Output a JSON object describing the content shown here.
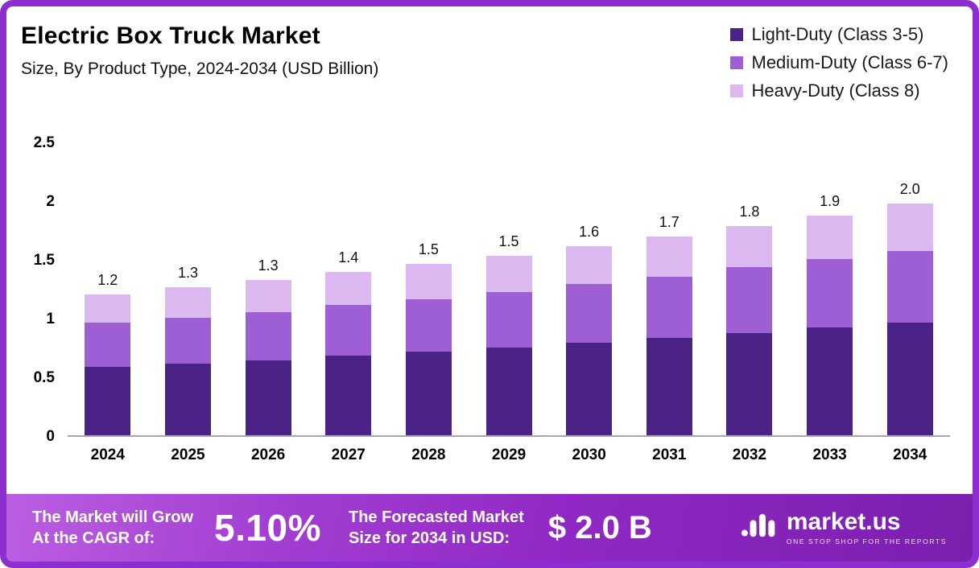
{
  "header": {
    "title": "Electric Box Truck Market",
    "subtitle": "Size, By Product Type, 2024-2034 (USD Billion)"
  },
  "legend": [
    {
      "label": "Light-Duty (Class 3-5)",
      "color": "#4B2387"
    },
    {
      "label": "Medium-Duty (Class 6-7)",
      "color": "#9D5FD3"
    },
    {
      "label": "Heavy-Duty (Class 8)",
      "color": "#DBB8F0"
    }
  ],
  "chart_data": {
    "type": "bar",
    "stacked": true,
    "title": "Electric Box Truck Market Size, By Product Type, 2024-2034 (USD Billion)",
    "categories": [
      "2024",
      "2025",
      "2026",
      "2027",
      "2028",
      "2029",
      "2030",
      "2031",
      "2032",
      "2033",
      "2034"
    ],
    "series": [
      {
        "name": "Light-Duty (Class 3-5)",
        "color": "#4B2387",
        "values": [
          0.58,
          0.61,
          0.64,
          0.68,
          0.71,
          0.75,
          0.79,
          0.83,
          0.87,
          0.92,
          0.96
        ]
      },
      {
        "name": "Medium-Duty (Class 6-7)",
        "color": "#9D5FD3",
        "values": [
          0.38,
          0.39,
          0.41,
          0.43,
          0.45,
          0.47,
          0.5,
          0.52,
          0.56,
          0.58,
          0.61
        ]
      },
      {
        "name": "Heavy-Duty (Class 8)",
        "color": "#DBB8F0",
        "values": [
          0.24,
          0.26,
          0.27,
          0.28,
          0.3,
          0.31,
          0.32,
          0.34,
          0.35,
          0.37,
          0.4
        ]
      }
    ],
    "totals": [
      "1.2",
      "1.3",
      "1.3",
      "1.4",
      "1.5",
      "1.5",
      "1.6",
      "1.7",
      "1.8",
      "1.9",
      "2.0"
    ],
    "ylim": [
      0,
      2.5
    ],
    "yticks": [
      "0",
      "0.5",
      "1",
      "1.5",
      "2",
      "2.5"
    ],
    "xlabel": "",
    "ylabel": "",
    "grid": false,
    "legend_position": "top-right"
  },
  "banner": {
    "cagr": {
      "line1": "The Market will Grow",
      "line2": "At the CAGR of:",
      "value": "5.10%"
    },
    "forecast": {
      "line1": "The Forecasted Market",
      "line2": "Size for 2034 in USD:",
      "value": "$ 2.0 B"
    },
    "brand": {
      "name": "market.us",
      "tagline": "ONE STOP SHOP FOR THE REPORTS"
    }
  },
  "colors": {
    "frame_border": "#8D2FD0",
    "banner_gradient_start": "#BB5EE2",
    "banner_gradient_end": "#7A1FAE",
    "axis_line": "#A8A8A8"
  }
}
